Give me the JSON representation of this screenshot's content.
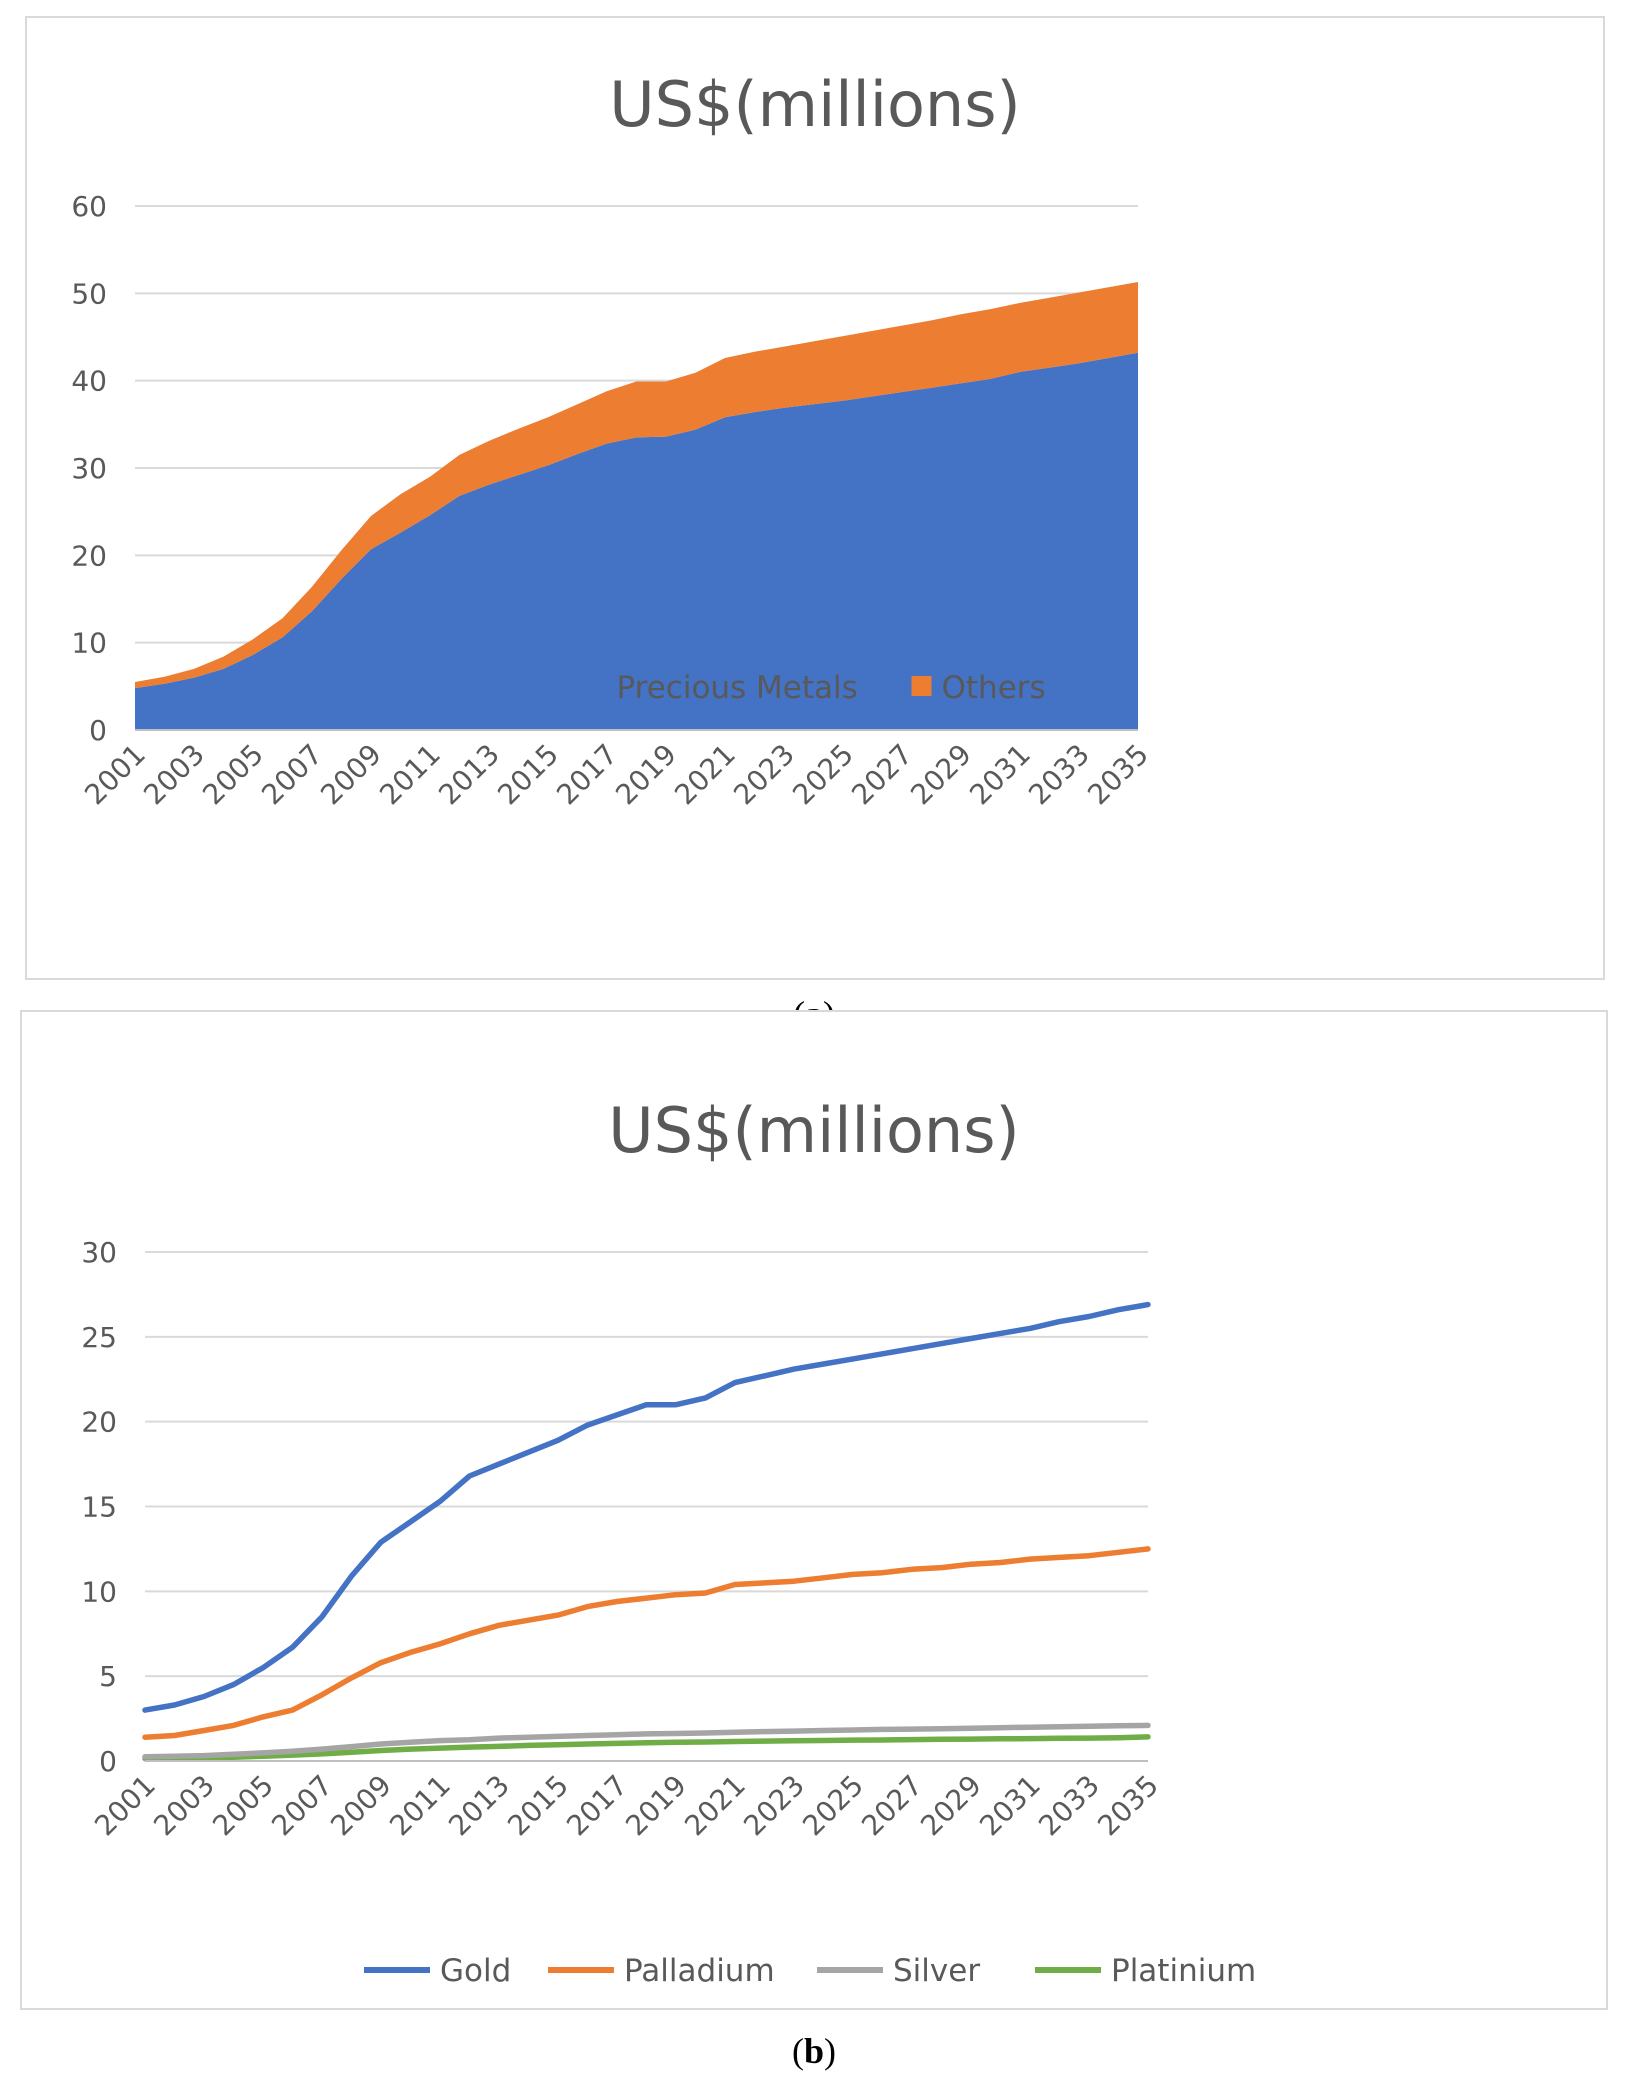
{
  "captions": {
    "a": "a",
    "b": "b"
  },
  "chart_data": [
    {
      "type": "area",
      "stacked": true,
      "title": "US$(millions)",
      "xlabel": "",
      "ylabel": "",
      "ylim": [
        0,
        60
      ],
      "yticks": [
        0,
        10,
        20,
        30,
        40,
        50,
        60
      ],
      "grid": true,
      "legend": "bottom",
      "x_tick_labels": [
        "2001",
        "2003",
        "2005",
        "2007",
        "2009",
        "2011",
        "2013",
        "2015",
        "2017",
        "2019",
        "2021",
        "2023",
        "2025",
        "2027",
        "2029",
        "2031",
        "2033",
        "2035"
      ],
      "x": [
        2001,
        2002,
        2003,
        2004,
        2005,
        2006,
        2007,
        2008,
        2009,
        2010,
        2011,
        2012,
        2013,
        2014,
        2015,
        2016,
        2017,
        2018,
        2019,
        2020,
        2021,
        2022,
        2023,
        2024,
        2025,
        2026,
        2027,
        2028,
        2029,
        2030,
        2031,
        2032,
        2033,
        2034,
        2035
      ],
      "series": [
        {
          "name": "Precious Metals",
          "color": "#4472C4",
          "values": [
            4.8,
            5.3,
            6.0,
            7.0,
            8.6,
            10.6,
            13.6,
            17.3,
            20.7,
            22.6,
            24.6,
            26.8,
            28.1,
            29.2,
            30.3,
            31.6,
            32.8,
            33.5,
            33.6,
            34.4,
            35.8,
            36.4,
            36.9,
            37.3,
            37.7,
            38.2,
            38.7,
            39.2,
            39.7,
            40.2,
            41.0,
            41.5,
            42.0,
            42.6,
            43.2
          ]
        },
        {
          "name": "Others",
          "color": "#ED7D31",
          "values": [
            0.7,
            0.8,
            1.0,
            1.4,
            1.8,
            2.2,
            2.8,
            3.3,
            3.8,
            4.4,
            4.4,
            4.7,
            5.0,
            5.3,
            5.5,
            5.7,
            6.0,
            6.4,
            6.3,
            6.5,
            6.8,
            6.9,
            7.0,
            7.2,
            7.4,
            7.5,
            7.6,
            7.7,
            7.9,
            8.0,
            7.9,
            8.0,
            8.1,
            8.1,
            8.1
          ]
        }
      ]
    },
    {
      "type": "line",
      "title": "US$(millions)",
      "xlabel": "",
      "ylabel": "",
      "ylim": [
        0,
        30
      ],
      "yticks": [
        0,
        5,
        10,
        15,
        20,
        25,
        30
      ],
      "grid": true,
      "legend": "bottom",
      "x_tick_labels": [
        "2001",
        "2003",
        "2005",
        "2007",
        "2009",
        "2011",
        "2013",
        "2015",
        "2017",
        "2019",
        "2021",
        "2023",
        "2025",
        "2027",
        "2029",
        "2031",
        "2033",
        "2035"
      ],
      "x": [
        2001,
        2002,
        2003,
        2004,
        2005,
        2006,
        2007,
        2008,
        2009,
        2010,
        2011,
        2012,
        2013,
        2014,
        2015,
        2016,
        2017,
        2018,
        2019,
        2020,
        2021,
        2022,
        2023,
        2024,
        2025,
        2026,
        2027,
        2028,
        2029,
        2030,
        2031,
        2032,
        2033,
        2034,
        2035
      ],
      "series": [
        {
          "name": "Gold",
          "color": "#4472C4",
          "values": [
            3.0,
            3.3,
            3.8,
            4.5,
            5.5,
            6.7,
            8.5,
            10.9,
            12.9,
            14.1,
            15.3,
            16.8,
            17.5,
            18.2,
            18.9,
            19.8,
            20.4,
            21.0,
            21.0,
            21.4,
            22.3,
            22.7,
            23.1,
            23.4,
            23.7,
            24.0,
            24.3,
            24.6,
            24.9,
            25.2,
            25.5,
            25.9,
            26.2,
            26.6,
            26.9
          ]
        },
        {
          "name": "Palladium",
          "color": "#ED7D31",
          "values": [
            1.4,
            1.5,
            1.8,
            2.1,
            2.6,
            3.0,
            3.9,
            4.9,
            5.8,
            6.4,
            6.9,
            7.5,
            8.0,
            8.3,
            8.6,
            9.1,
            9.4,
            9.6,
            9.8,
            9.9,
            10.4,
            10.5,
            10.6,
            10.8,
            11.0,
            11.1,
            11.3,
            11.4,
            11.6,
            11.7,
            11.9,
            12.0,
            12.1,
            12.3,
            12.5
          ]
        },
        {
          "name": "Silver",
          "color": "#A5A5A5",
          "values": [
            0.25,
            0.28,
            0.32,
            0.4,
            0.48,
            0.58,
            0.7,
            0.85,
            1.0,
            1.1,
            1.2,
            1.25,
            1.35,
            1.4,
            1.45,
            1.5,
            1.55,
            1.6,
            1.62,
            1.65,
            1.7,
            1.73,
            1.76,
            1.8,
            1.83,
            1.86,
            1.88,
            1.9,
            1.93,
            1.96,
            1.99,
            2.02,
            2.05,
            2.08,
            2.1
          ]
        },
        {
          "name": "Platinium",
          "color": "#70AD47",
          "values": [
            0.15,
            0.16,
            0.18,
            0.22,
            0.28,
            0.35,
            0.42,
            0.52,
            0.62,
            0.7,
            0.76,
            0.82,
            0.86,
            0.92,
            0.96,
            1.0,
            1.04,
            1.08,
            1.1,
            1.12,
            1.15,
            1.17,
            1.19,
            1.21,
            1.23,
            1.24,
            1.26,
            1.28,
            1.29,
            1.31,
            1.32,
            1.34,
            1.35,
            1.37,
            1.42
          ]
        }
      ]
    }
  ]
}
